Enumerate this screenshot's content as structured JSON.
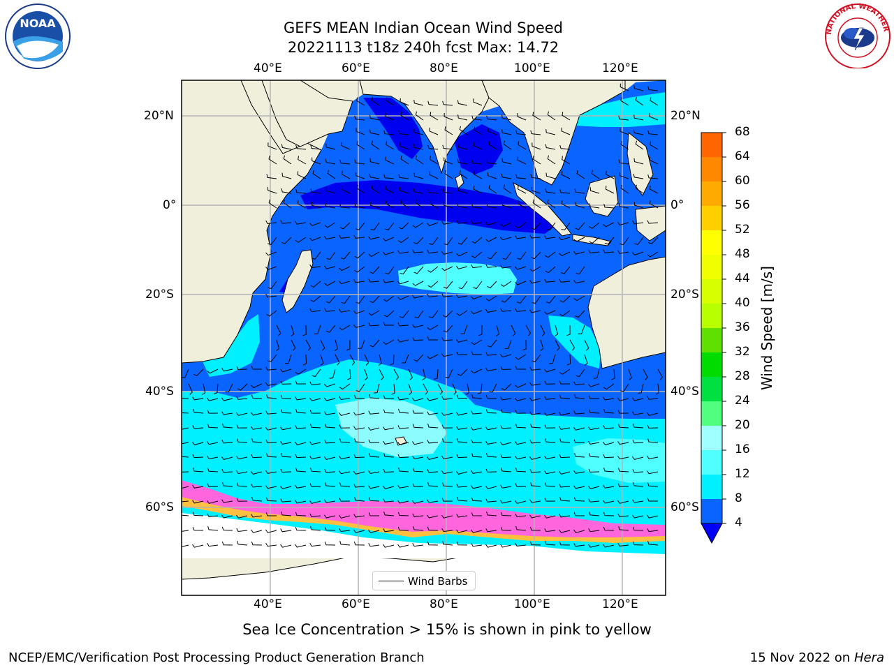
{
  "title": {
    "line1": "GEFS MEAN Indian Ocean Wind Speed",
    "line2": "20221113 t18z 240h fcst   Max: 14.72"
  },
  "logos": {
    "left": "NOAA",
    "right": "NATIONAL WEATHER SERVICE"
  },
  "map": {
    "top_lon_labels": [
      "40°E",
      "60°E",
      "80°E",
      "100°E",
      "120°E"
    ],
    "bottom_lon_labels": [
      "40°E",
      "60°E",
      "80°E",
      "100°E",
      "120°E"
    ],
    "left_lat_labels": [
      "20°N",
      "0°",
      "20°S",
      "40°S",
      "60°S"
    ],
    "right_lat_labels": [
      "20°N",
      "0°",
      "20°S",
      "40°S",
      "60°S"
    ],
    "legend": "Wind Barbs",
    "colors": {
      "land": "#f0efdc",
      "ocean_low": "#0a64ff",
      "ocean_mid": "#00f0ff",
      "ocean_pale": "#8cfcff",
      "ice": "#ff66dd",
      "ice_edge": "#ffbf40"
    }
  },
  "colorbar": {
    "label": "Wind Speed [m/s]",
    "ticks": [
      "68",
      "64",
      "60",
      "56",
      "52",
      "48",
      "44",
      "40",
      "36",
      "32",
      "28",
      "24",
      "20",
      "16",
      "12",
      "8",
      "4"
    ],
    "colors": [
      "#ff0000",
      "#ff3300",
      "#ff6600",
      "#ff8800",
      "#ffaa00",
      "#ffd000",
      "#ffff00",
      "#f0ff00",
      "#d8ff00",
      "#b8ff00",
      "#60e000",
      "#00dc00",
      "#00e040",
      "#50ff80",
      "#a0ffff",
      "#50ffff",
      "#00f0ff",
      "#0a64ff",
      "#0000ff"
    ]
  },
  "caption": "Sea Ice Concentration > 15% is shown in pink to yellow",
  "footer": {
    "left": "NCEP/EMC/Verification Post Processing Product Generation Branch",
    "date": "15 Nov 2022 on",
    "host": "Hera"
  }
}
